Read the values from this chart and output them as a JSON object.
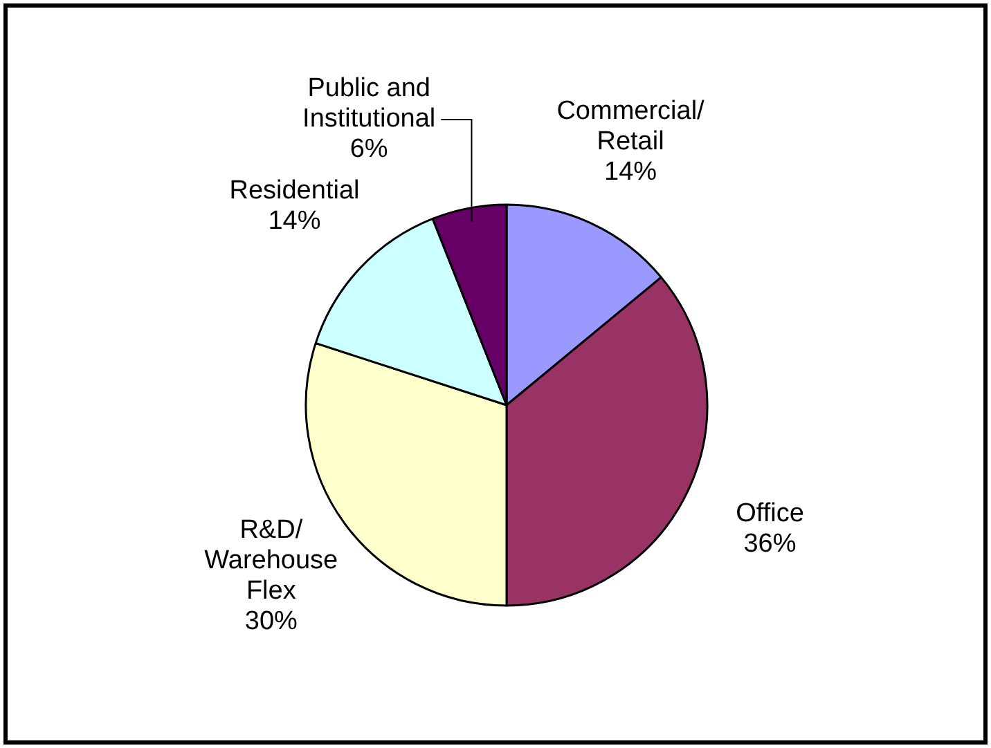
{
  "chart_data": {
    "type": "pie",
    "categories": [
      "Commercial/ Retail",
      "Office",
      "R&D/ Warehouse Flex",
      "Residential",
      "Public and Institutional"
    ],
    "values": [
      14,
      36,
      30,
      14,
      6
    ],
    "value_labels": [
      "14%",
      "36%",
      "30%",
      "14%",
      "6%"
    ],
    "colors": [
      "#9999ff",
      "#993366",
      "#ffffcc",
      "#ccffff",
      "#660066"
    ],
    "legend": false
  }
}
